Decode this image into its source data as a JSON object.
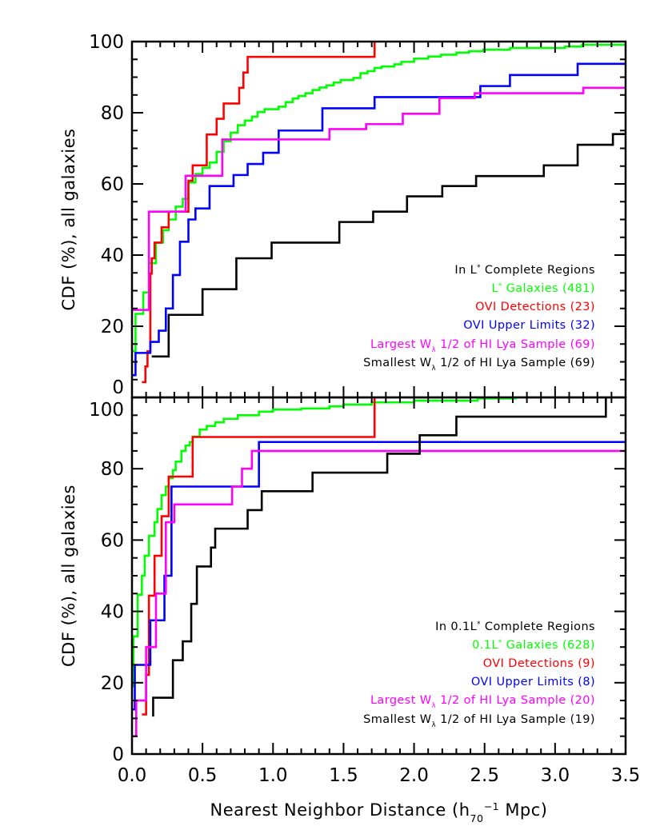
{
  "chart_data": [
    {
      "type": "line",
      "panel": "top",
      "ylabel": "CDF (%), all galaxies",
      "xlim": [
        0,
        3.5
      ],
      "ylim": [
        0,
        100
      ],
      "y_ticks": [
        "0",
        "20",
        "40",
        "60",
        "80",
        "100"
      ],
      "step": true,
      "legend_placement": "bottom-right",
      "legend_title": [
        {
          "t": "In L"
        },
        {
          "t": "*",
          "s": "sup"
        },
        {
          "t": " Complete Regions"
        }
      ],
      "series": [
        {
          "color": "#00ff00",
          "legend": [
            {
              "t": "L"
            },
            {
              "t": "*",
              "s": "sup"
            },
            {
              "t": " Galaxies (481)"
            }
          ],
          "points": [
            [
              0.004,
              13
            ],
            [
              0.025,
              23.5
            ],
            [
              0.08,
              29.5
            ],
            [
              0.12,
              37.7
            ],
            [
              0.17,
              43.5
            ],
            [
              0.22,
              47
            ],
            [
              0.26,
              50
            ],
            [
              0.31,
              53.6
            ],
            [
              0.36,
              55.8
            ],
            [
              0.4,
              60.4
            ],
            [
              0.45,
              62.8
            ],
            [
              0.5,
              64.5
            ],
            [
              0.55,
              66
            ],
            [
              0.6,
              69
            ],
            [
              0.65,
              72
            ],
            [
              0.7,
              74.4
            ],
            [
              0.75,
              76.5
            ],
            [
              0.8,
              77.8
            ],
            [
              0.85,
              78.9
            ],
            [
              0.89,
              80.2
            ],
            [
              0.94,
              81
            ],
            [
              1.04,
              81.7
            ],
            [
              1.09,
              83
            ],
            [
              1.14,
              84
            ],
            [
              1.18,
              84.7
            ],
            [
              1.23,
              85.5
            ],
            [
              1.28,
              86.4
            ],
            [
              1.33,
              87.1
            ],
            [
              1.38,
              87.7
            ],
            [
              1.43,
              88.5
            ],
            [
              1.48,
              89.2
            ],
            [
              1.57,
              89.8
            ],
            [
              1.62,
              91.1
            ],
            [
              1.67,
              91.7
            ],
            [
              1.72,
              92.6
            ],
            [
              1.77,
              93
            ],
            [
              1.86,
              93.6
            ],
            [
              1.91,
              94.3
            ],
            [
              2.0,
              95.2
            ],
            [
              2.1,
              95.8
            ],
            [
              2.19,
              96.3
            ],
            [
              2.3,
              96.9
            ],
            [
              2.39,
              97.3
            ],
            [
              2.49,
              97.7
            ],
            [
              2.68,
              98.2
            ],
            [
              3.07,
              98.6
            ],
            [
              3.19,
              99.1
            ]
          ],
          "end_x": 3.5
        },
        {
          "color": "#ff0000",
          "legend": [
            {
              "t": "OVI Detections (23)"
            }
          ],
          "points": [
            [
              0.07,
              4.3
            ],
            [
              0.095,
              8.7
            ],
            [
              0.11,
              13
            ],
            [
              0.13,
              34.8
            ],
            [
              0.14,
              39.1
            ],
            [
              0.16,
              43.5
            ],
            [
              0.21,
              47.8
            ],
            [
              0.26,
              52.2
            ],
            [
              0.4,
              60.9
            ],
            [
              0.43,
              65.2
            ],
            [
              0.53,
              73.9
            ],
            [
              0.6,
              78.3
            ],
            [
              0.65,
              82.6
            ],
            [
              0.76,
              87
            ],
            [
              0.79,
              91.3
            ],
            [
              0.82,
              95.7
            ],
            [
              1.72,
              100
            ]
          ],
          "end_x": 1.72
        },
        {
          "color": "#0000ff",
          "legend": [
            {
              "t": "OVI Upper Limits (32)"
            }
          ],
          "points": [
            [
              0.004,
              6.25
            ],
            [
              0.025,
              12.5
            ],
            [
              0.13,
              15.6
            ],
            [
              0.19,
              18.75
            ],
            [
              0.24,
              25
            ],
            [
              0.29,
              34.4
            ],
            [
              0.34,
              43.75
            ],
            [
              0.4,
              50
            ],
            [
              0.45,
              53.1
            ],
            [
              0.55,
              59.4
            ],
            [
              0.72,
              62.5
            ],
            [
              0.82,
              65.6
            ],
            [
              0.93,
              68.75
            ],
            [
              1.04,
              75
            ],
            [
              1.35,
              81.25
            ],
            [
              1.72,
              84.4
            ],
            [
              2.47,
              87.5
            ],
            [
              2.68,
              90.6
            ],
            [
              3.16,
              93.75
            ]
          ],
          "end_x": 3.5
        },
        {
          "color": "#ff00ff",
          "legend": [
            {
              "t": "Largest W"
            },
            {
              "t": "λ",
              "s": "sub"
            },
            {
              "t": " 1/2 of HI Lya Sample (69)"
            }
          ],
          "points": [
            [
              0.0,
              24.6
            ],
            [
              0.12,
              52.2
            ],
            [
              0.38,
              62.3
            ],
            [
              0.64,
              72.5
            ],
            [
              1.4,
              75.4
            ],
            [
              1.66,
              76.8
            ],
            [
              1.92,
              79.7
            ],
            [
              2.18,
              84.1
            ],
            [
              2.43,
              85.5
            ],
            [
              3.2,
              87
            ]
          ],
          "end_x": 3.5
        },
        {
          "color": "#000000",
          "legend": [
            {
              "t": "Smallest W"
            },
            {
              "t": "λ",
              "s": "sub"
            },
            {
              "t": " 1/2 of HI Lya Sample (69)"
            }
          ],
          "points": [
            [
              0.14,
              11.5
            ],
            [
              0.26,
              23.2
            ],
            [
              0.5,
              30.4
            ],
            [
              0.74,
              39.1
            ],
            [
              0.99,
              43.5
            ],
            [
              1.47,
              49.3
            ],
            [
              1.71,
              52.2
            ],
            [
              1.95,
              56.5
            ],
            [
              2.2,
              59.4
            ],
            [
              2.44,
              62.2
            ],
            [
              2.92,
              65.2
            ],
            [
              3.16,
              71
            ],
            [
              3.41,
              74
            ]
          ],
          "end_x": 3.5
        }
      ]
    },
    {
      "type": "line",
      "panel": "bottom",
      "ylabel": "CDF (%), all galaxies",
      "xlabel": [
        {
          "t": "Nearest Neighbor Distance (h"
        },
        {
          "t": "70",
          "s": "sub"
        },
        {
          "t": "−1",
          "s": "sup"
        },
        {
          "t": " Mpc)"
        }
      ],
      "xlim": [
        0,
        3.5
      ],
      "ylim": [
        0,
        100
      ],
      "x_ticks": [
        "0.0",
        "0.5",
        "1.0",
        "1.5",
        "2.0",
        "2.5",
        "3.0",
        "3.5"
      ],
      "y_ticks": [
        "0",
        "20",
        "40",
        "60",
        "80",
        "100"
      ],
      "step": true,
      "legend_placement": "bottom-right",
      "legend_title": [
        {
          "t": "In 0.1L"
        },
        {
          "t": "*",
          "s": "sup"
        },
        {
          "t": " Complete Regions"
        }
      ],
      "series": [
        {
          "color": "#00ff00",
          "legend": [
            {
              "t": "0.1L"
            },
            {
              "t": "*",
              "s": "sup"
            },
            {
              "t": " Galaxies (628)"
            }
          ],
          "points": [
            [
              0.004,
              19
            ],
            [
              0.01,
              33
            ],
            [
              0.04,
              44.7
            ],
            [
              0.07,
              50
            ],
            [
              0.09,
              55.6
            ],
            [
              0.12,
              61.2
            ],
            [
              0.16,
              65
            ],
            [
              0.18,
              68.7
            ],
            [
              0.21,
              72.6
            ],
            [
              0.24,
              75
            ],
            [
              0.26,
              77.4
            ],
            [
              0.29,
              79.6
            ],
            [
              0.31,
              82
            ],
            [
              0.35,
              85
            ],
            [
              0.38,
              86.5
            ],
            [
              0.41,
              87.5
            ],
            [
              0.43,
              89
            ],
            [
              0.48,
              91
            ],
            [
              0.53,
              92
            ],
            [
              0.59,
              93
            ],
            [
              0.65,
              94
            ],
            [
              0.75,
              95
            ],
            [
              0.9,
              96
            ],
            [
              1.0,
              96.6
            ],
            [
              1.2,
              96.9
            ],
            [
              1.4,
              97.5
            ],
            [
              1.5,
              98
            ],
            [
              1.7,
              98.6
            ],
            [
              2.0,
              99.1
            ],
            [
              2.45,
              99.7
            ],
            [
              2.72,
              100
            ]
          ],
          "end_x": 2.72
        },
        {
          "color": "#ff0000",
          "legend": [
            {
              "t": "OVI Detections (9)"
            }
          ],
          "points": [
            [
              0.07,
              11.1
            ],
            [
              0.1,
              22.2
            ],
            [
              0.12,
              44.4
            ],
            [
              0.16,
              55.6
            ],
            [
              0.21,
              66.7
            ],
            [
              0.26,
              77.8
            ],
            [
              0.43,
              88.9
            ],
            [
              1.72,
              100
            ]
          ],
          "end_x": 1.72
        },
        {
          "color": "#0000ff",
          "legend": [
            {
              "t": "OVI Upper Limits (8)"
            }
          ],
          "points": [
            [
              0.004,
              12.5
            ],
            [
              0.02,
              25
            ],
            [
              0.13,
              37.5
            ],
            [
              0.23,
              50
            ],
            [
              0.28,
              75
            ],
            [
              0.9,
              87.5
            ]
          ],
          "end_x": 3.5
        },
        {
          "color": "#ff00ff",
          "legend": [
            {
              "t": "Largest W"
            },
            {
              "t": "λ",
              "s": "sub"
            },
            {
              "t": " 1/2 of HI Lya Sample (20)"
            }
          ],
          "points": [
            [
              0.01,
              5
            ],
            [
              0.03,
              15
            ],
            [
              0.1,
              30
            ],
            [
              0.17,
              45
            ],
            [
              0.24,
              65
            ],
            [
              0.3,
              70
            ],
            [
              0.71,
              75
            ],
            [
              0.78,
              80
            ],
            [
              0.85,
              85
            ]
          ],
          "end_x": 3.5
        },
        {
          "color": "#000000",
          "legend": [
            {
              "t": "Smallest W"
            },
            {
              "t": "λ",
              "s": "sub"
            },
            {
              "t": " 1/2 of HI Lya Sample (19)"
            }
          ],
          "points": [
            [
              0.15,
              10.5
            ],
            [
              0.15,
              15.8
            ],
            [
              0.29,
              26.3
            ],
            [
              0.36,
              31.6
            ],
            [
              0.42,
              42.1
            ],
            [
              0.46,
              52.6
            ],
            [
              0.56,
              57.9
            ],
            [
              0.59,
              63.2
            ],
            [
              0.82,
              68.4
            ],
            [
              0.92,
              73.7
            ],
            [
              1.28,
              78.9
            ],
            [
              1.81,
              84.2
            ],
            [
              2.04,
              89.4
            ],
            [
              2.3,
              94.6
            ],
            [
              3.36,
              100
            ]
          ],
          "end_x": 3.36
        }
      ]
    }
  ]
}
